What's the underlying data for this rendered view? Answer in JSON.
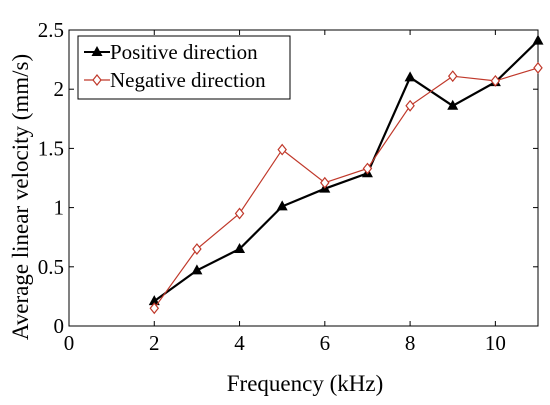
{
  "chart_data": {
    "type": "line",
    "xlabel": "Frequency (kHz)",
    "ylabel": "Average linear velocity (mm/s)",
    "xlim": [
      0,
      11
    ],
    "ylim": [
      0,
      2.5
    ],
    "xticks": [
      0,
      2,
      4,
      6,
      8,
      10
    ],
    "yticks": [
      0,
      0.5,
      1,
      1.5,
      2,
      2.5
    ],
    "xtick_labels": [
      "0",
      "2",
      "4",
      "6",
      "8",
      "10"
    ],
    "ytick_labels": [
      "0",
      "0.5",
      "1",
      "1.5",
      "2",
      "2.5"
    ],
    "legend_position": "top-left",
    "grid": false,
    "series": [
      {
        "name": "Positive direction",
        "color": "#000000",
        "marker": "triangle",
        "x": [
          2,
          3,
          4,
          5,
          6,
          7,
          8,
          9,
          10,
          11
        ],
        "y": [
          0.21,
          0.47,
          0.65,
          1.01,
          1.16,
          1.29,
          2.1,
          1.86,
          2.06,
          2.41
        ]
      },
      {
        "name": "Negative direction",
        "color": "#c0392b",
        "marker": "diamond",
        "x": [
          2,
          3,
          4,
          5,
          6,
          7,
          8,
          9,
          10,
          11
        ],
        "y": [
          0.15,
          0.65,
          0.95,
          1.49,
          1.21,
          1.33,
          1.86,
          2.11,
          2.07,
          2.18
        ]
      }
    ]
  }
}
